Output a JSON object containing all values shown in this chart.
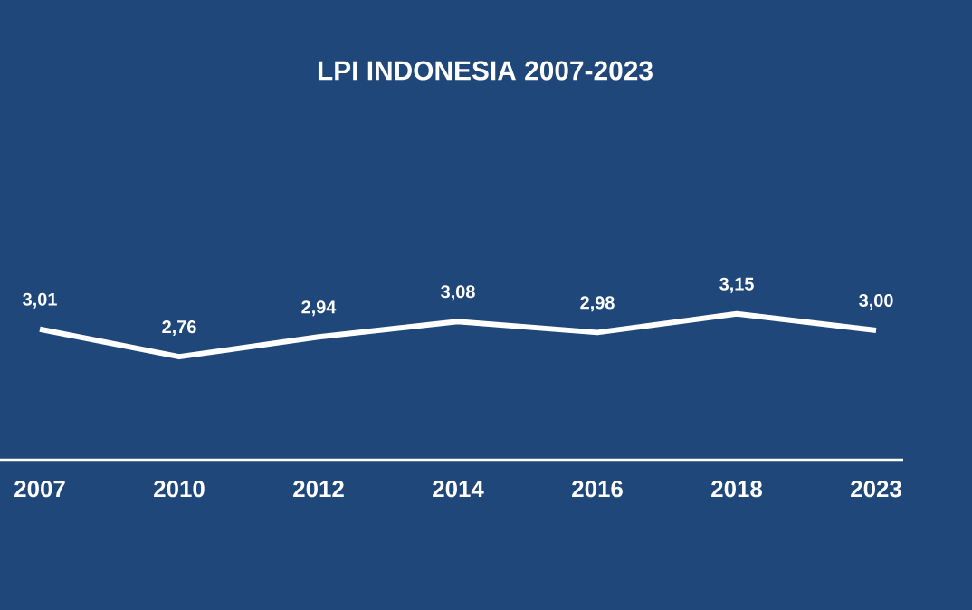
{
  "chart_data": {
    "type": "line",
    "title": "LPI INDONESIA 2007-2023",
    "categories": [
      "2007",
      "2010",
      "2012",
      "2014",
      "2016",
      "2018",
      "2023"
    ],
    "values": [
      3.01,
      2.76,
      2.94,
      3.08,
      2.98,
      3.15,
      3.0
    ],
    "value_labels": [
      "3,01",
      "2,76",
      "2,94",
      "3,08",
      "2,98",
      "3,15",
      "3,00"
    ],
    "color": "#ffffff",
    "tick_labels": "x"
  }
}
